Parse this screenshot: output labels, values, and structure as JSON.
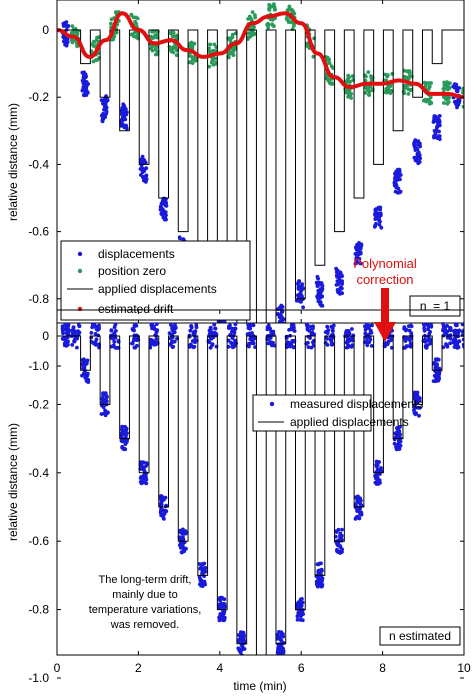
{
  "chart_data": [
    {
      "type": "scatter",
      "xlim": [
        0,
        10
      ],
      "ylim": [
        -1.08,
        0.1
      ],
      "yticks": [
        0,
        -0.2,
        -0.4,
        -0.6,
        -0.8,
        -1.0
      ],
      "ytick_labels": [
        "0",
        "-0.2",
        "-0.4",
        "-0.6",
        "-0.8",
        "-1.0"
      ],
      "xlabel": "",
      "ylabel": "relative distance (mm)",
      "x_tick_labels_visible": false,
      "legend_placement": "bottom-left",
      "legend": [
        {
          "label": "displacements",
          "marker": "dot",
          "color": "#1a1adb"
        },
        {
          "label": "position zero",
          "marker": "dot",
          "color": "#2a9a5a"
        },
        {
          "label": "applied displacements",
          "marker": "line",
          "color": "#000000"
        },
        {
          "label": "estimated drift",
          "marker": "dot",
          "color": "#e01010"
        }
      ],
      "annotation": "n  = 1",
      "applied_displacement_levels": [
        0,
        -0.1,
        -0.2,
        -0.3,
        -0.4,
        -0.5,
        -0.6,
        -0.7,
        -0.8,
        -0.9,
        -1.0,
        -0.9,
        -0.8,
        -0.7,
        -0.6,
        -0.5,
        -0.4,
        -0.3,
        -0.2,
        -0.1,
        0
      ],
      "drift_x": [
        0,
        0.4,
        0.8,
        1.2,
        1.6,
        2.0,
        2.4,
        2.8,
        3.2,
        3.6,
        4.0,
        4.4,
        4.8,
        5.2,
        5.6,
        6.0,
        6.4,
        6.8,
        7.2,
        7.6,
        8.0,
        8.4,
        8.8,
        9.2,
        9.6,
        10.0
      ],
      "drift_y": [
        0.0,
        -0.02,
        -0.08,
        -0.03,
        0.05,
        0.0,
        -0.04,
        -0.03,
        -0.06,
        -0.08,
        -0.07,
        -0.04,
        0.02,
        0.04,
        0.05,
        0.02,
        -0.07,
        -0.14,
        -0.17,
        -0.16,
        -0.16,
        -0.15,
        -0.16,
        -0.19,
        -0.19,
        -0.2
      ],
      "colors": {
        "displacements": "#1a1adb",
        "position_zero": "#2a9a5a",
        "drift": "#e01010",
        "applied": "#000000"
      }
    },
    {
      "type": "scatter",
      "xlim": [
        0,
        10
      ],
      "ylim": [
        -1.08,
        0.1
      ],
      "xticks": [
        0,
        2,
        4,
        6,
        8,
        10
      ],
      "xtick_labels": [
        "0",
        "2",
        "4",
        "6",
        "8",
        "10"
      ],
      "yticks": [
        0,
        -0.2,
        -0.4,
        -0.6,
        -0.8,
        -1.0
      ],
      "ytick_labels": [
        "0",
        "-0.2",
        "-0.4",
        "-0.6",
        "-0.8",
        "-1.0"
      ],
      "xlabel": "time (min)",
      "ylabel": "relative distance (mm)",
      "legend_placement": "top-right",
      "legend": [
        {
          "label": "measured displacements",
          "marker": "dot",
          "color": "#1a1adb"
        },
        {
          "label": "applied displacements",
          "marker": "line",
          "color": "#000000"
        }
      ],
      "annotation": "n estimated",
      "note_lines": [
        "The long-term drift,",
        "mainly due to",
        "temperature variations,",
        "was removed."
      ],
      "applied_displacement_levels": [
        0,
        -0.1,
        -0.2,
        -0.3,
        -0.4,
        -0.5,
        -0.6,
        -0.7,
        -0.8,
        -0.9,
        -1.0,
        -0.9,
        -0.8,
        -0.7,
        -0.6,
        -0.5,
        -0.4,
        -0.3,
        -0.2,
        -0.1,
        0
      ],
      "colors": {
        "displacements": "#1a1adb",
        "applied": "#000000"
      }
    }
  ],
  "callout": {
    "lines": [
      "Polynomial",
      "correction"
    ],
    "color": "#e01010"
  }
}
